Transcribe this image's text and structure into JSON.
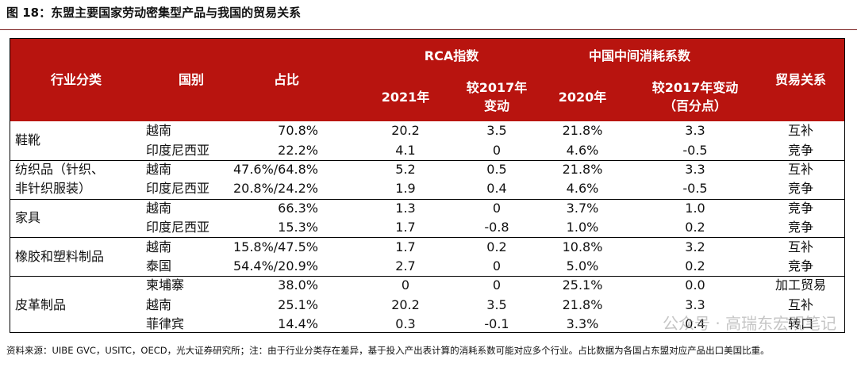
{
  "header": {
    "title": "图 18：东盟主要国家劳动密集型产品与我国的贸易关系"
  },
  "table": {
    "headers": {
      "industry": "行业分类",
      "country": "国别",
      "share": "占比",
      "rca": "RCA指数",
      "consumption": "中国中间消耗系数",
      "relation": "贸易关系",
      "sub": [
        [
          "2021年"
        ],
        [
          "较2017年",
          "变动"
        ],
        [
          "2020年"
        ],
        [
          "较2017年变动",
          "（百分点）"
        ]
      ]
    },
    "groups": [
      {
        "industry": [
          "鞋靴"
        ],
        "rows": [
          [
            "越南",
            "70.8%",
            "20.2",
            "3.5",
            "21.8%",
            "3.3",
            "互补"
          ],
          [
            "印度尼西亚",
            "22.2%",
            "4.1",
            "0",
            "4.6%",
            "-0.5",
            "竞争"
          ]
        ]
      },
      {
        "industry": [
          "纺织品（针织、",
          "非针织服装）"
        ],
        "rows": [
          [
            "越南",
            "47.6%/64.8%",
            "5.2",
            "0.5",
            "21.8%",
            "3.3",
            "互补"
          ],
          [
            "印度尼西亚",
            "20.8%/24.2%",
            "1.9",
            "0.4",
            "4.6%",
            "-0.5",
            "竞争"
          ]
        ]
      },
      {
        "industry": [
          "家具"
        ],
        "rows": [
          [
            "越南",
            "66.3%",
            "1.3",
            "0",
            "3.7%",
            "1.0",
            "竞争"
          ],
          [
            "印度尼西亚",
            "15.3%",
            "1.7",
            "-0.8",
            "1.0%",
            "0.2",
            "竞争"
          ]
        ]
      },
      {
        "industry": [
          "橡胶和塑料制品"
        ],
        "rows": [
          [
            "越南",
            "15.8%/47.5%",
            "1.7",
            "0.2",
            "10.8%",
            "3.2",
            "互补"
          ],
          [
            "泰国",
            "54.4%/20.9%",
            "2.7",
            "0",
            "5.0%",
            "0.2",
            "竞争"
          ]
        ]
      },
      {
        "industry": [
          "皮革制品"
        ],
        "rows": [
          [
            "柬埔寨",
            "38.0%",
            "0",
            "0",
            "25.1%",
            "0.0",
            "加工贸易"
          ],
          [
            "越南",
            "25.1%",
            "20.2",
            "3.5",
            "21.8%",
            "3.3",
            "互补"
          ],
          [
            "菲律宾",
            "14.4%",
            "0.3",
            "-0.1",
            "3.3%",
            "0.4",
            "转口"
          ]
        ]
      }
    ]
  },
  "footnote": "资料来源：UIBE GVC，USITC，OECD，光大证券研究所；注：由于行业分类存在差异，基于投入产出表计算的消耗系数可能对应多个行业。占比数据为各国占东盟对应产品出口美国比重。",
  "watermark": "公众号 · 高瑞东宏观笔记"
}
